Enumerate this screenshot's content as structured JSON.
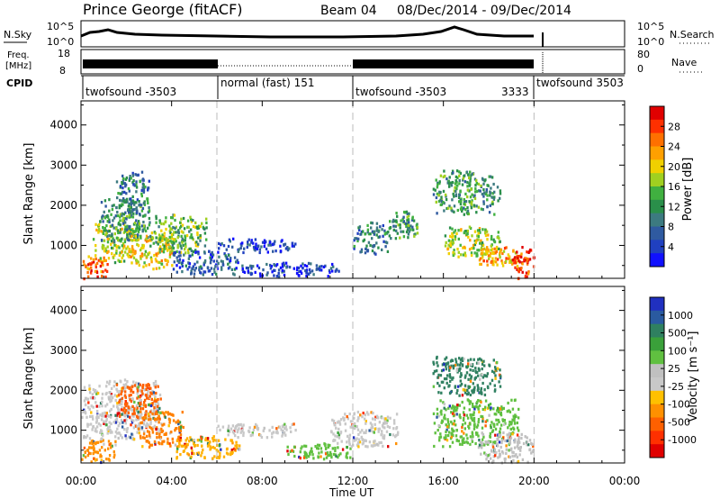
{
  "header": {
    "station": "Prince George (fitACF)",
    "beam": "Beam 04",
    "date_range": "08/Dec/2014 - 09/Dec/2014"
  },
  "panels": {
    "nsky": {
      "label": "N.Sky",
      "left_ticks": [
        "10^5",
        "10^0"
      ],
      "right_ticks": [
        "10^5",
        "10^0"
      ],
      "right_label": "N.Search"
    },
    "freq": {
      "label": "Freq.",
      "unit": "[MHz]",
      "left_ticks": [
        "18",
        "8"
      ],
      "right_ticks": [
        "80",
        "0"
      ],
      "right_label": "Nave"
    },
    "cpid": {
      "label": "CPID",
      "segments": [
        {
          "label": "twofsound -3503",
          "start_h": 0.0,
          "end_h": 6.0
        },
        {
          "label": "normal (fast) 151",
          "start_h": 6.0,
          "end_h": 12.0
        },
        {
          "label": "twofsound -3503",
          "start_h": 12.0,
          "end_h": 20.0
        },
        {
          "label": "3333",
          "start_h": 20.0,
          "end_h": 20.0
        },
        {
          "label": "twofsound 3503",
          "start_h": 20.0,
          "end_h": 24.0
        }
      ]
    },
    "power": {
      "ylabel": "Slant Range [km]",
      "cbar_label": "Power [dB]",
      "cbar_ticks": [
        "28",
        "24",
        "20",
        "16",
        "12",
        "8",
        "4"
      ],
      "cbar_colors": [
        "#e00000",
        "#ff3000",
        "#ff7000",
        "#ffa000",
        "#f0d000",
        "#a0d020",
        "#40b040",
        "#2a8f4a",
        "#3c7a80",
        "#2f5aa0",
        "#2040c0",
        "#1010ff"
      ]
    },
    "velocity": {
      "ylabel": "Slant Range [km]",
      "cbar_label": "Velocity [m s⁻¹]",
      "cbar_ticks": [
        "1000",
        "500",
        "100",
        "25",
        "-25",
        "-100",
        "-500",
        "-1000"
      ],
      "cbar_colors": [
        "#2030c0",
        "#2a5aa0",
        "#2f8060",
        "#3aa03a",
        "#60c040",
        "#c0c0c0",
        "#c8c8c8",
        "#ffc000",
        "#ff9000",
        "#ff6000",
        "#ff3000",
        "#e00000"
      ]
    }
  },
  "chart_data": {
    "type": "heatmap",
    "title": "Prince George (fitACF)  Beam 04  08/Dec/2014 - 09/Dec/2014",
    "xlabel": "Time UT",
    "x_ticks": [
      "00:00",
      "04:00",
      "08:00",
      "12:00",
      "16:00",
      "20:00",
      "00:00"
    ],
    "xlim_hours": [
      0,
      24
    ],
    "ylabel": "Slant Range [km]",
    "y_ticks": [
      1000,
      2000,
      3000,
      4000
    ],
    "ylim_km": [
      180,
      4600
    ],
    "time_markers_hours": [
      6,
      12,
      20
    ],
    "power_blobs": [
      {
        "t0": 0.0,
        "t1": 1.2,
        "r0": 200,
        "r1": 800,
        "level": 9
      },
      {
        "t0": 0.5,
        "t1": 2.5,
        "r0": 600,
        "r1": 1600,
        "level": 6
      },
      {
        "t0": 0.8,
        "t1": 3.0,
        "r0": 1100,
        "r1": 2200,
        "level": 4
      },
      {
        "t0": 1.5,
        "t1": 3.0,
        "r0": 1700,
        "r1": 2900,
        "level": 3
      },
      {
        "t0": 2.0,
        "t1": 4.0,
        "r0": 400,
        "r1": 1300,
        "level": 7
      },
      {
        "t0": 3.0,
        "t1": 5.5,
        "r0": 800,
        "r1": 1800,
        "level": 5
      },
      {
        "t0": 4.0,
        "t1": 7.0,
        "r0": 300,
        "r1": 900,
        "level": 2
      },
      {
        "t0": 6.0,
        "t1": 9.5,
        "r0": 850,
        "r1": 1200,
        "level": 1
      },
      {
        "t0": 7.0,
        "t1": 11.5,
        "r0": 250,
        "r1": 600,
        "level": 1
      },
      {
        "t0": 12.0,
        "t1": 13.5,
        "r0": 800,
        "r1": 1600,
        "level": 3
      },
      {
        "t0": 13.5,
        "t1": 15.0,
        "r0": 1200,
        "r1": 1900,
        "level": 4
      },
      {
        "t0": 15.5,
        "t1": 18.5,
        "r0": 1800,
        "r1": 2900,
        "level": 4
      },
      {
        "t0": 16.0,
        "t1": 18.5,
        "r0": 700,
        "r1": 1500,
        "level": 6
      },
      {
        "t0": 17.5,
        "t1": 19.3,
        "r0": 500,
        "r1": 1000,
        "level": 8
      },
      {
        "t0": 19.0,
        "t1": 20.0,
        "r0": 200,
        "r1": 1000,
        "level": 10
      }
    ],
    "velocity_blobs": [
      {
        "t0": 0.0,
        "t1": 1.5,
        "r0": 200,
        "r1": 800,
        "color": "#ff9000"
      },
      {
        "t0": 0.0,
        "t1": 3.5,
        "r0": 800,
        "r1": 2300,
        "color": "#c8c8c8"
      },
      {
        "t0": 1.5,
        "t1": 3.5,
        "r0": 1300,
        "r1": 2200,
        "color": "#ff6000"
      },
      {
        "t0": 2.5,
        "t1": 4.5,
        "r0": 600,
        "r1": 1500,
        "color": "#ff8000"
      },
      {
        "t0": 4.0,
        "t1": 7.0,
        "r0": 300,
        "r1": 900,
        "color": "#ffb000"
      },
      {
        "t0": 6.0,
        "t1": 9.5,
        "r0": 850,
        "r1": 1200,
        "color": "#c8c8c8"
      },
      {
        "t0": 9.0,
        "t1": 12.0,
        "r0": 300,
        "r1": 700,
        "color": "#60c040"
      },
      {
        "t0": 11.0,
        "t1": 14.0,
        "r0": 600,
        "r1": 1500,
        "color": "#c8c8c8"
      },
      {
        "t0": 15.5,
        "t1": 18.5,
        "r0": 1900,
        "r1": 2900,
        "color": "#2f8060"
      },
      {
        "t0": 15.5,
        "t1": 19.3,
        "r0": 600,
        "r1": 1800,
        "color": "#60c040"
      },
      {
        "t0": 17.5,
        "t1": 20.0,
        "r0": 200,
        "r1": 1000,
        "color": "#c0c0c0"
      }
    ]
  }
}
